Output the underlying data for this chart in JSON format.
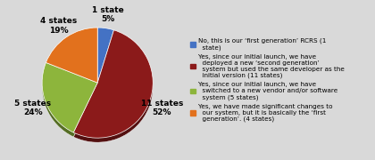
{
  "slices": [
    1,
    11,
    5,
    4
  ],
  "labels": [
    "1 state\n5%",
    "11 states\n52%",
    "5 states\n24%",
    "4 states\n19%"
  ],
  "colors": [
    "#4472C4",
    "#8B1A1A",
    "#8DB53C",
    "#E2711D"
  ],
  "legend_labels": [
    "No, this is our ‘first generation’ RCRS (1\n  state)",
    "Yes, since our initial launch, we have\n  deployed a new ‘second generation’\n  system but used the same developer as the\n  initial version (11 states)",
    "Yes, since our initial launch, we have\n  switched to a new vendor and/or software\n  system (5 states)",
    "Yes, we have made significant changes to\n  our system, but it is basically the ‘first\n  generation’. (4 states)"
  ],
  "startangle": 90,
  "figsize": [
    4.2,
    1.8
  ],
  "dpi": 100,
  "bg_color": "#D9D9D9",
  "label_fontsize": 6.5,
  "legend_fontsize": 5.2
}
